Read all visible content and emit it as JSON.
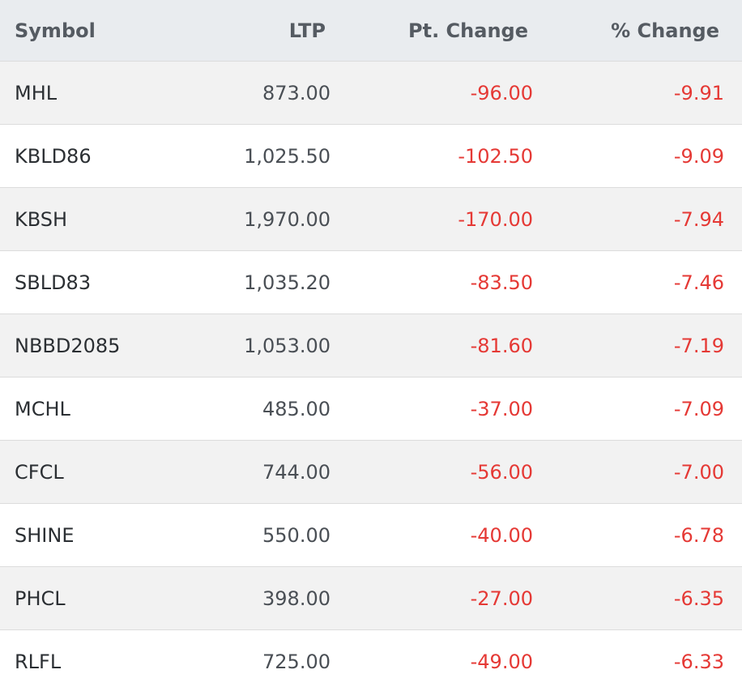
{
  "headers": {
    "symbol": "Symbol",
    "ltp": "LTP",
    "pt_change": "Pt. Change",
    "pct_change": "% Change"
  },
  "rows": [
    {
      "symbol": "MHL",
      "ltp": "873.00",
      "pt_change": "-96.00",
      "pct_change": "-9.91"
    },
    {
      "symbol": "KBLD86",
      "ltp": "1,025.50",
      "pt_change": "-102.50",
      "pct_change": "-9.09"
    },
    {
      "symbol": "KBSH",
      "ltp": "1,970.00",
      "pt_change": "-170.00",
      "pct_change": "-7.94"
    },
    {
      "symbol": "SBLD83",
      "ltp": "1,035.20",
      "pt_change": "-83.50",
      "pct_change": "-7.46"
    },
    {
      "symbol": "NBBD2085",
      "ltp": "1,053.00",
      "pt_change": "-81.60",
      "pct_change": "-7.19"
    },
    {
      "symbol": "MCHL",
      "ltp": "485.00",
      "pt_change": "-37.00",
      "pct_change": "-7.09"
    },
    {
      "symbol": "CFCL",
      "ltp": "744.00",
      "pt_change": "-56.00",
      "pct_change": "-7.00"
    },
    {
      "symbol": "SHINE",
      "ltp": "550.00",
      "pt_change": "-40.00",
      "pct_change": "-6.78"
    },
    {
      "symbol": "PHCL",
      "ltp": "398.00",
      "pt_change": "-27.00",
      "pct_change": "-6.35"
    },
    {
      "symbol": "RLFL",
      "ltp": "725.00",
      "pt_change": "-49.00",
      "pct_change": "-6.33"
    }
  ],
  "colors": {
    "negative": "#e53935",
    "header_bg": "#e9ecef",
    "stripe_bg": "#f2f2f2"
  }
}
